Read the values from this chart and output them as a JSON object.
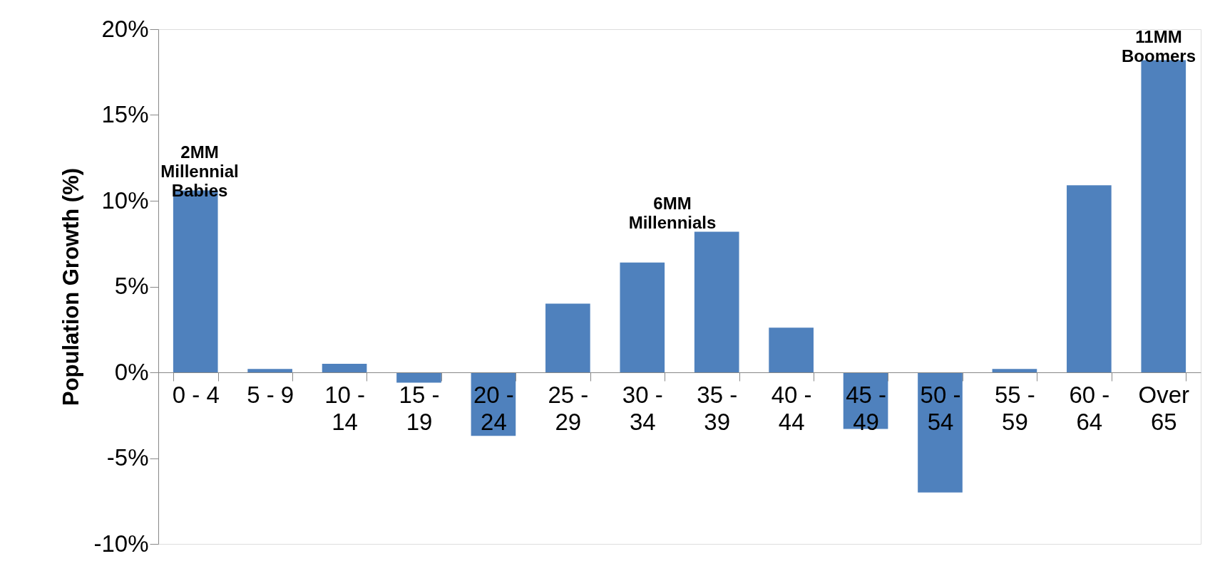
{
  "chart_data": {
    "type": "bar",
    "ylabel": "Population Growth (%)",
    "categories": [
      "0 - 4",
      "5 - 9",
      "10 - 14",
      "15 - 19",
      "20 - 24",
      "25 - 29",
      "30 - 34",
      "35 - 39",
      "40 - 44",
      "45 - 49",
      "50 - 54",
      "55 - 59",
      "60 - 64",
      "Over 65"
    ],
    "values": [
      10.6,
      0.2,
      0.5,
      -0.6,
      -3.7,
      4.0,
      6.4,
      8.2,
      2.6,
      -3.3,
      -7.0,
      0.2,
      10.9,
      18.2
    ],
    "color": "#4f81bd",
    "ylim": [
      -10,
      20
    ],
    "yticks": [
      {
        "value": -10,
        "label": "-10%"
      },
      {
        "value": -5,
        "label": "-5%"
      },
      {
        "value": 0,
        "label": "0%"
      },
      {
        "value": 5,
        "label": "5%"
      },
      {
        "value": 10,
        "label": "10%"
      },
      {
        "value": 15,
        "label": "15%"
      },
      {
        "value": 20,
        "label": "20%"
      }
    ],
    "grid": false,
    "annotations": [
      "2MM Millennial Babies",
      "6MM Millennials",
      "11MM Boomers"
    ]
  }
}
